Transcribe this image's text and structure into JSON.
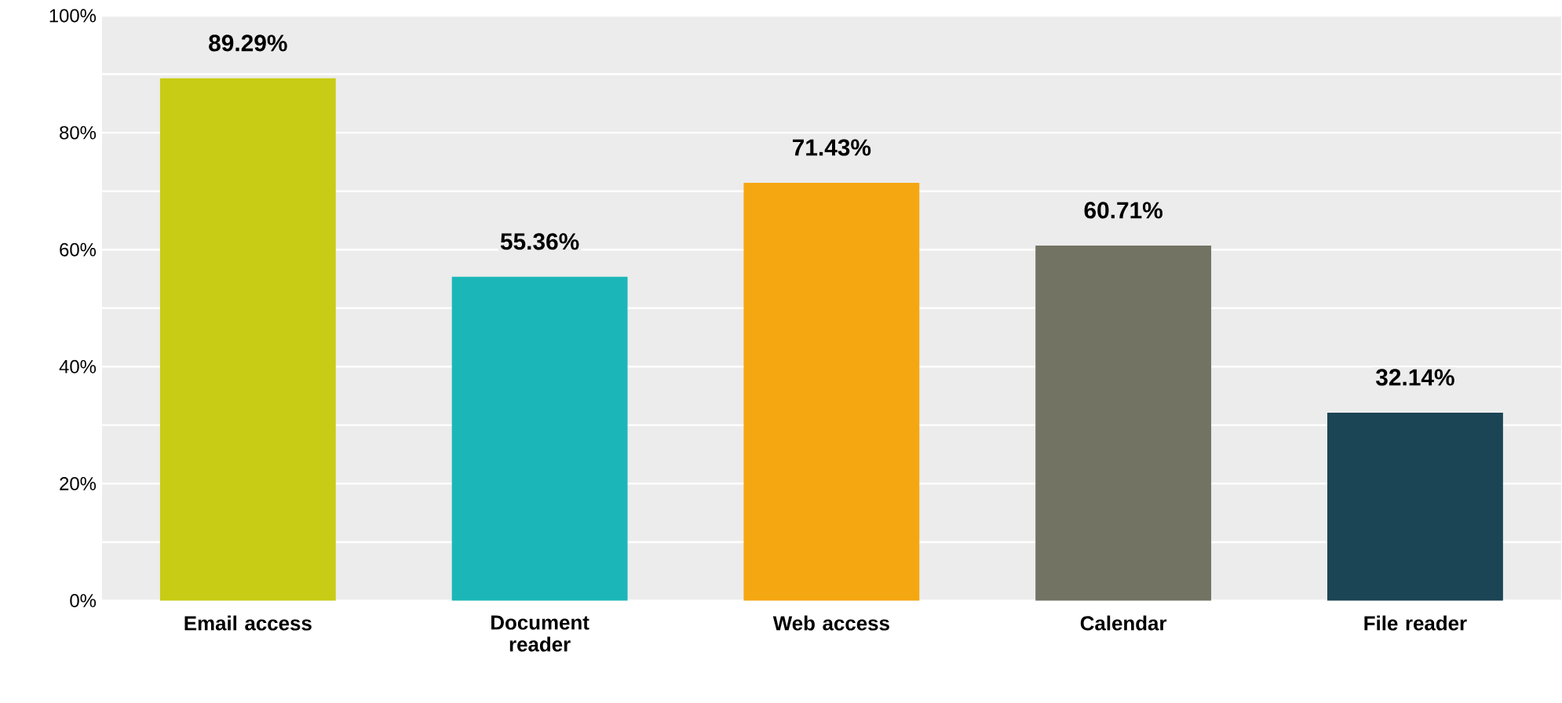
{
  "chart_data": {
    "type": "bar",
    "categories": [
      "Email access",
      "Document reader",
      "Web access",
      "Calendar",
      "File reader"
    ],
    "values": [
      89.29,
      55.36,
      71.43,
      60.71,
      32.14
    ],
    "colors": [
      "#c8cc14",
      "#1bb7b8",
      "#f5a712",
      "#737363",
      "#1b4455"
    ],
    "value_labels": [
      "89.29%",
      "55.36%",
      "71.43%",
      "60.71%",
      "32.14%"
    ],
    "ylim": [
      0,
      100
    ],
    "yticks": [
      {
        "value": 0,
        "label": "0%"
      },
      {
        "value": 10,
        "label": null
      },
      {
        "value": 20,
        "label": "20%"
      },
      {
        "value": 30,
        "label": null
      },
      {
        "value": 40,
        "label": "40%"
      },
      {
        "value": 50,
        "label": null
      },
      {
        "value": 60,
        "label": "60%"
      },
      {
        "value": 70,
        "label": null
      },
      {
        "value": 80,
        "label": "80%"
      },
      {
        "value": 90,
        "label": null
      },
      {
        "value": 100,
        "label": "100%"
      }
    ],
    "grid": "y"
  }
}
